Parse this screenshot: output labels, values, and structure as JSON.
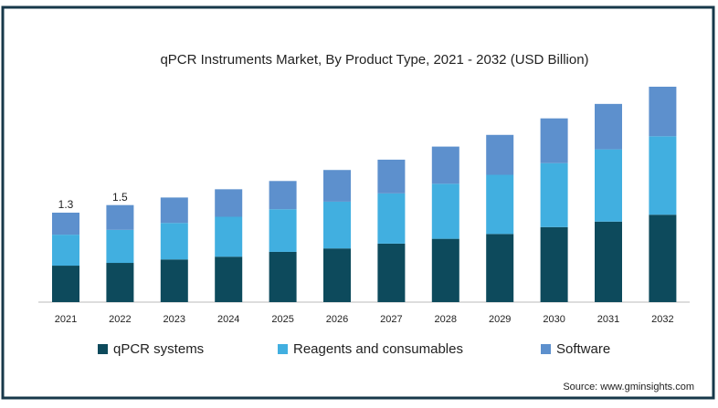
{
  "chart_data": {
    "type": "stacked-bar",
    "title": "qPCR Instruments Market, By Product Type, 2021 - 2032 (USD Billion)",
    "categories": [
      "2021",
      "2022",
      "2023",
      "2024",
      "2025",
      "2026",
      "2027",
      "2028",
      "2029",
      "2030",
      "2031",
      "2032"
    ],
    "series": [
      {
        "name": "qPCR systems",
        "color": "#0d4a5c",
        "values": [
          0.53,
          0.57,
          0.62,
          0.66,
          0.73,
          0.78,
          0.85,
          0.92,
          0.99,
          1.09,
          1.17,
          1.27
        ]
      },
      {
        "name": "Reagents and consumables",
        "color": "#41afe0",
        "values": [
          0.45,
          0.48,
          0.53,
          0.58,
          0.62,
          0.68,
          0.73,
          0.8,
          0.86,
          0.93,
          1.05,
          1.14
        ]
      },
      {
        "name": "Software",
        "color": "#5d90cd",
        "values": [
          0.32,
          0.36,
          0.37,
          0.4,
          0.41,
          0.46,
          0.49,
          0.54,
          0.58,
          0.65,
          0.66,
          0.72
        ]
      }
    ],
    "total_labels": [
      1.3,
      1.5
    ],
    "source": "Source: www.gminsights.com"
  }
}
